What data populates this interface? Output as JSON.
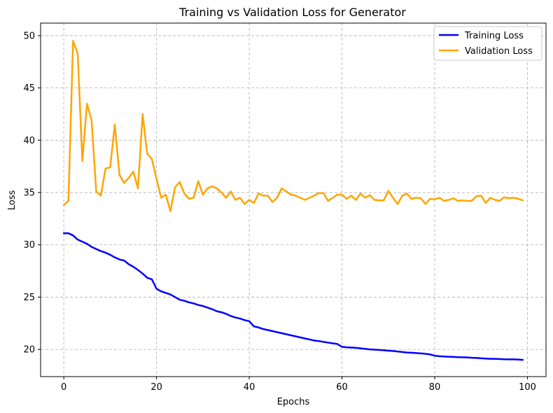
{
  "chart_data": {
    "type": "line",
    "title": "Training vs Validation Loss for Generator",
    "xlabel": "Epochs",
    "ylabel": "Loss",
    "xlim": [
      -5,
      104
    ],
    "ylim": [
      17.4,
      51.2
    ],
    "xticks": [
      0,
      20,
      40,
      60,
      80,
      100
    ],
    "yticks": [
      20,
      25,
      30,
      35,
      40,
      45,
      50
    ],
    "grid": true,
    "legend_position": "top-right",
    "series": [
      {
        "name": "Training Loss",
        "color": "#0000ff",
        "x": [
          0,
          1,
          2,
          3,
          4,
          5,
          6,
          7,
          8,
          9,
          10,
          11,
          12,
          13,
          14,
          15,
          16,
          17,
          18,
          19,
          20,
          21,
          22,
          23,
          24,
          25,
          26,
          27,
          28,
          29,
          30,
          31,
          32,
          33,
          34,
          35,
          36,
          37,
          38,
          39,
          40,
          41,
          42,
          43,
          44,
          45,
          46,
          47,
          48,
          49,
          50,
          51,
          52,
          53,
          54,
          55,
          56,
          57,
          58,
          59,
          60,
          61,
          62,
          63,
          64,
          65,
          66,
          67,
          68,
          69,
          70,
          71,
          72,
          73,
          74,
          75,
          76,
          77,
          78,
          79,
          80,
          81,
          82,
          83,
          84,
          85,
          86,
          87,
          88,
          89,
          90,
          91,
          92,
          93,
          94,
          95,
          96,
          97,
          98,
          99
        ],
        "values": [
          31.1,
          31.1,
          30.9,
          30.5,
          30.3,
          30.1,
          29.8,
          29.6,
          29.4,
          29.25,
          29.05,
          28.8,
          28.6,
          28.5,
          28.15,
          27.9,
          27.6,
          27.25,
          26.85,
          26.7,
          25.8,
          25.55,
          25.4,
          25.25,
          25.0,
          24.75,
          24.65,
          24.5,
          24.4,
          24.25,
          24.15,
          24.0,
          23.85,
          23.65,
          23.55,
          23.4,
          23.2,
          23.05,
          22.95,
          22.8,
          22.7,
          22.2,
          22.1,
          21.95,
          21.85,
          21.75,
          21.65,
          21.55,
          21.45,
          21.35,
          21.25,
          21.15,
          21.05,
          20.95,
          20.85,
          20.8,
          20.72,
          20.65,
          20.58,
          20.52,
          20.25,
          20.2,
          20.18,
          20.15,
          20.1,
          20.05,
          20.0,
          19.98,
          19.95,
          19.92,
          19.88,
          19.85,
          19.8,
          19.75,
          19.7,
          19.68,
          19.65,
          19.62,
          19.58,
          19.52,
          19.4,
          19.35,
          19.32,
          19.3,
          19.28,
          19.26,
          19.25,
          19.23,
          19.2,
          19.18,
          19.15,
          19.12,
          19.1,
          19.1,
          19.08,
          19.06,
          19.05,
          19.05,
          19.03,
          19.0
        ]
      },
      {
        "name": "Validation Loss",
        "color": "#ffa500",
        "x": [
          0,
          1,
          2,
          3,
          4,
          5,
          6,
          7,
          8,
          9,
          10,
          11,
          12,
          13,
          14,
          15,
          16,
          17,
          18,
          19,
          20,
          21,
          22,
          23,
          24,
          25,
          26,
          27,
          28,
          29,
          30,
          31,
          32,
          33,
          34,
          35,
          36,
          37,
          38,
          39,
          40,
          41,
          42,
          43,
          44,
          45,
          46,
          47,
          48,
          49,
          50,
          51,
          52,
          53,
          54,
          55,
          56,
          57,
          58,
          59,
          60,
          61,
          62,
          63,
          64,
          65,
          66,
          67,
          68,
          69,
          70,
          71,
          72,
          73,
          74,
          75,
          76,
          77,
          78,
          79,
          80,
          81,
          82,
          83,
          84,
          85,
          86,
          87,
          88,
          89,
          90,
          91,
          92,
          93,
          94,
          95,
          96,
          97,
          98,
          99
        ],
        "values": [
          33.8,
          34.2,
          49.5,
          48.3,
          38.0,
          43.5,
          41.9,
          35.1,
          34.7,
          37.3,
          37.4,
          41.5,
          36.7,
          35.9,
          36.4,
          37.0,
          35.4,
          42.5,
          38.7,
          38.2,
          36.3,
          34.5,
          34.8,
          33.2,
          35.5,
          36.0,
          34.9,
          34.4,
          34.5,
          36.1,
          34.8,
          35.4,
          35.6,
          35.4,
          35.0,
          34.5,
          35.1,
          34.3,
          34.5,
          33.9,
          34.3,
          34.0,
          34.9,
          34.7,
          34.7,
          34.1,
          34.5,
          35.4,
          35.1,
          34.8,
          34.7,
          34.5,
          34.3,
          34.5,
          34.7,
          34.95,
          34.95,
          34.2,
          34.5,
          34.8,
          34.8,
          34.4,
          34.7,
          34.3,
          34.9,
          34.5,
          34.75,
          34.3,
          34.25,
          34.25,
          35.15,
          34.5,
          33.9,
          34.7,
          34.9,
          34.4,
          34.5,
          34.45,
          33.9,
          34.4,
          34.35,
          34.5,
          34.2,
          34.3,
          34.45,
          34.2,
          34.25,
          34.2,
          34.2,
          34.65,
          34.7,
          34.0,
          34.5,
          34.3,
          34.2,
          34.55,
          34.45,
          34.5,
          34.4,
          34.25
        ]
      }
    ]
  }
}
